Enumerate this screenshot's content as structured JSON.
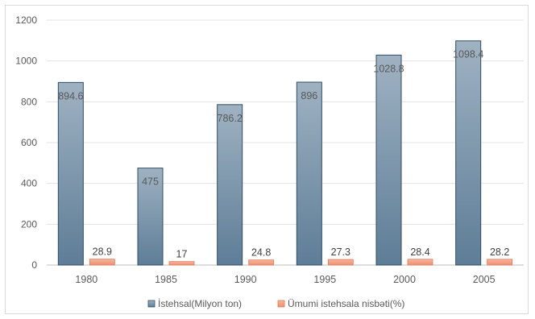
{
  "chart_data": {
    "type": "bar",
    "title": "",
    "xlabel": "",
    "ylabel": "",
    "categories": [
      "1980",
      "1985",
      "1990",
      "1995",
      "2000",
      "2005"
    ],
    "series": [
      {
        "name": "İstehsal(Milyon ton)",
        "values": [
          894.6,
          475,
          786.2,
          896,
          1028.8,
          1098.4
        ],
        "color": "#7b96ad"
      },
      {
        "name": "Ümumi istehsala nisbəti(%)",
        "values": [
          28.9,
          17,
          24.8,
          27.3,
          28.4,
          28.2
        ],
        "color": "#f4a58a"
      }
    ],
    "ylim": [
      0,
      1200
    ],
    "yticks": [
      "0",
      "200",
      "400",
      "600",
      "800",
      "1000",
      "1200"
    ],
    "data_labels": [
      [
        "894.6",
        "475",
        "786.2",
        "896",
        "1028.8",
        "1098.4"
      ],
      [
        "28.9",
        "17",
        "24.8",
        "27.3",
        "28.4",
        "28.2"
      ]
    ],
    "grid": true,
    "legend_position": "bottom"
  }
}
